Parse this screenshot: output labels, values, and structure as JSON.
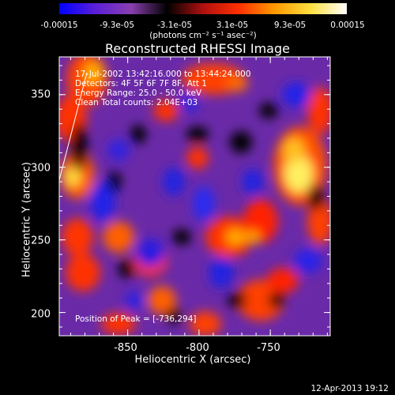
{
  "colorbar": {
    "ticks": [
      "-0.00015",
      "-9.3e-05",
      "-3.1e-05",
      "3.1e-05",
      "9.3e-05",
      "0.00015"
    ],
    "units": "(photons cm⁻² s⁻¹ asec⁻²)",
    "stops": [
      "#0000ff",
      "#5a1fd6",
      "#8a3fb0",
      "#000000",
      "#b01010",
      "#ff3000",
      "#ff9a00",
      "#ffe040",
      "#ffffff"
    ]
  },
  "plot": {
    "title": "Reconstructed RHESSI Image",
    "annotations": [
      "17-Jul-2002 13:42:16.000 to 13:44:24.000",
      "Detectors: 4F 5F 6F 7F 8F, Att 1",
      "Energy Range: 25.0 - 50.0 keV",
      "Clean    Total counts: 2.04E+03"
    ],
    "peak_label": "Position of Peak = [-736,294]",
    "xlabel": "Heliocentric X (arcsec)",
    "ylabel": "Heliocentric Y (arcsec)",
    "xticks": [
      "-850",
      "-800",
      "-750"
    ],
    "yticks": [
      "350",
      "300",
      "250",
      "200"
    ],
    "x_tick_values": [
      -850,
      -800,
      -750
    ],
    "y_tick_values": [
      350,
      300,
      250,
      200
    ],
    "xlim": [
      -898,
      -708
    ],
    "ylim": [
      184,
      376
    ]
  },
  "timestamp": "12-Apr-2013 19:12"
}
